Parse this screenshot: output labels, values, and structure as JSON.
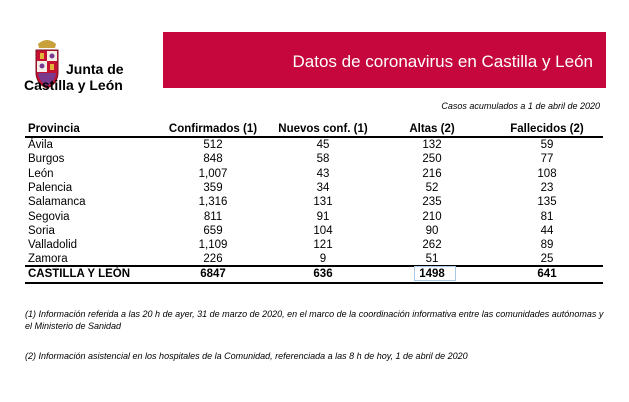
{
  "logo": {
    "line1": "Junta de",
    "line2": "Castilla y León"
  },
  "header": {
    "title": "Datos de coronavirus en Castilla y León",
    "subtitle": "Casos acumulados a 1 de abril de 2020"
  },
  "table": {
    "headers": [
      "Provincia",
      "Confirmados (1)",
      "Nuevos conf. (1)",
      "Altas (2)",
      "Fallecidos (2)"
    ],
    "rows": [
      [
        "Ávila",
        "512",
        "45",
        "132",
        "59"
      ],
      [
        "Burgos",
        "848",
        "58",
        "250",
        "77"
      ],
      [
        "León",
        "1,007",
        "43",
        "216",
        "108"
      ],
      [
        "Palencia",
        "359",
        "34",
        "52",
        "23"
      ],
      [
        "Salamanca",
        "1,316",
        "131",
        "235",
        "135"
      ],
      [
        "Segovia",
        "811",
        "91",
        "210",
        "81"
      ],
      [
        "Soria",
        "659",
        "104",
        "90",
        "44"
      ],
      [
        "Valladolid",
        "1,109",
        "121",
        "262",
        "89"
      ],
      [
        "Zamora",
        "226",
        "9",
        "51",
        "25"
      ]
    ],
    "total": [
      "CASTILLA Y LEÓN",
      "6847",
      "636",
      "1498",
      "641"
    ]
  },
  "notes": [
    "(1) Información referida a las 20 h de ayer, 31 de marzo de 2020, en el marco de la coordinación informativa entre las comunidades autónomas y el Ministerio de Sanidad",
    "(2) Información asistencial en los hospitales de la Comunidad, referenciada a las 8 h de hoy, 1 de abril de 2020"
  ]
}
